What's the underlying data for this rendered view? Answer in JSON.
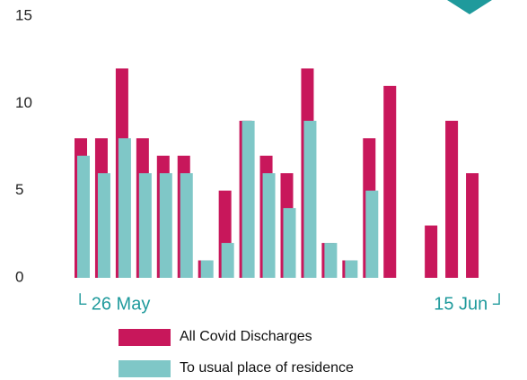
{
  "chart_data": {
    "type": "bar",
    "categories": [
      "└ 26 May",
      null,
      null,
      null,
      null,
      null,
      null,
      null,
      null,
      null,
      null,
      null,
      null,
      null,
      null,
      null,
      null,
      null,
      null,
      "15 Jun ┘"
    ],
    "series": [
      {
        "name": "All Covid Discharges",
        "color": "#c8175b",
        "values": [
          8,
          8,
          12,
          8,
          7,
          7,
          1,
          5,
          9,
          7,
          6,
          12,
          2,
          1,
          8,
          11,
          null,
          3,
          9,
          6
        ]
      },
      {
        "name": "To usual place of residence",
        "color": "#7fc7c7",
        "values": [
          7,
          6,
          8,
          6,
          6,
          6,
          1,
          2,
          9,
          6,
          4,
          9,
          2,
          1,
          5,
          null,
          null,
          null,
          null,
          null
        ]
      }
    ],
    "ylim": [
      0,
      15
    ],
    "yticks": [
      0,
      5,
      10,
      15
    ]
  }
}
